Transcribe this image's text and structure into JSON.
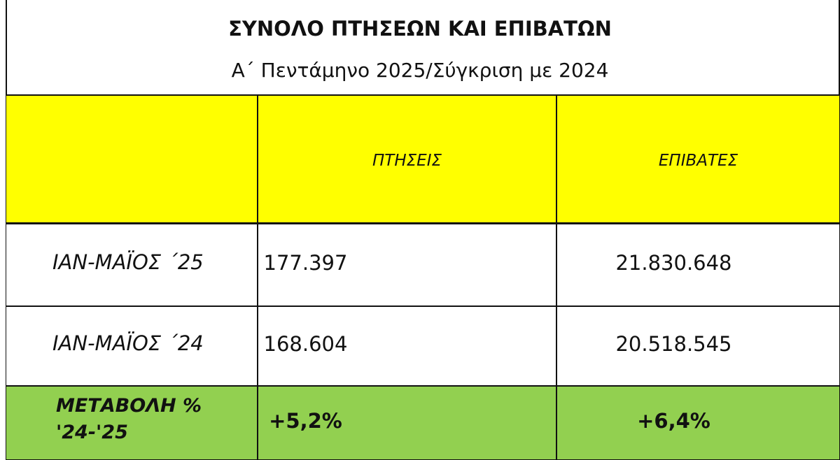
{
  "header": {
    "title": "ΣΥΝΟΛΟ ΠΤΗΣΕΩΝ ΚΑΙ ΕΠΙΒΑΤΩΝ",
    "subtitle": "Α΄ Πεντάμηνο 2025/Σύγκριση με 2024"
  },
  "table": {
    "columns": [
      "ΠΤΗΣΕΙΣ",
      "ΕΠΙΒΑΤΕΣ"
    ],
    "rows": [
      {
        "label": [
          "ΙΑΝ-ΜΑΪΟΣ ΄25"
        ],
        "cells": [
          "177.397",
          "21.830.648"
        ]
      },
      {
        "label": [
          "ΙΑΝ-ΜΑΪΟΣ ΄24"
        ],
        "cells": [
          "168.604",
          "20.518.545"
        ]
      },
      {
        "label": [
          "ΜΕΤΑΒΟΛΗ %",
          "'24-'25"
        ],
        "cells": [
          "+5,2%",
          "+6,4%"
        ]
      }
    ]
  }
}
